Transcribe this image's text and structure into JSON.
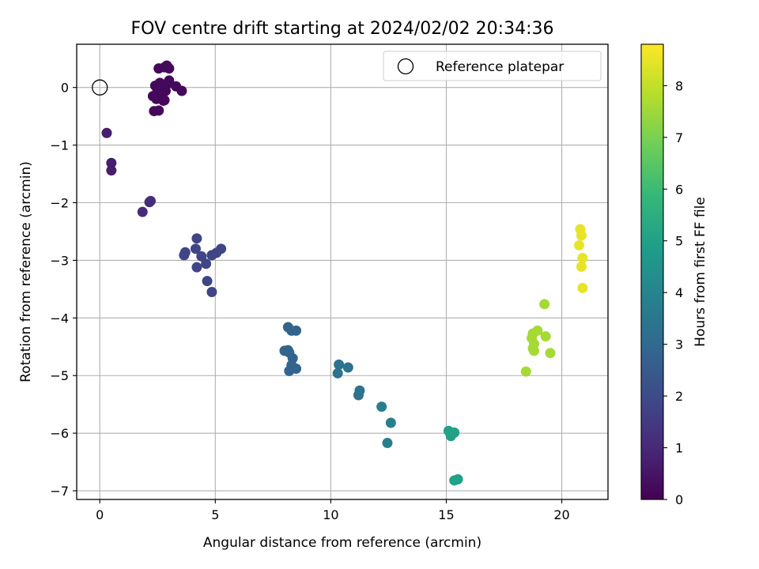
{
  "chart_data": {
    "type": "scatter",
    "title": "FOV centre drift starting at 2024/02/02 20:34:36",
    "xlabel": "Angular distance from reference (arcmin)",
    "ylabel": "Rotation from reference (arcmin)",
    "xlim": [
      -1,
      22
    ],
    "ylim": [
      -7.15,
      0.75
    ],
    "xticks": [
      0,
      5,
      10,
      15,
      20
    ],
    "yticks": [
      0,
      -1,
      -2,
      -3,
      -4,
      -5,
      -6,
      -7
    ],
    "grid": true,
    "legend": {
      "position": "top-right",
      "entries": [
        "Reference platepar"
      ]
    },
    "reference_point": {
      "x": 0,
      "y": 0,
      "label": "Reference platepar"
    },
    "colorbar": {
      "label": "Hours from first FF file",
      "range": [
        0,
        8.8
      ],
      "ticks": [
        0,
        1,
        2,
        3,
        4,
        5,
        6,
        7,
        8
      ],
      "colormap": [
        "#440154",
        "#482878",
        "#3e4a89",
        "#31688e",
        "#26828e",
        "#1f9e89",
        "#35b779",
        "#6ece58",
        "#b5de2b",
        "#fde725"
      ]
    },
    "points": [
      {
        "x": 2.8,
        "y": 0.35,
        "t": 0.2
      },
      {
        "x": 3.0,
        "y": 0.33,
        "t": 0.2
      },
      {
        "x": 2.55,
        "y": 0.33,
        "t": 0.2
      },
      {
        "x": 2.9,
        "y": 0.38,
        "t": 0.2
      },
      {
        "x": 2.4,
        "y": 0.03,
        "t": 0.2
      },
      {
        "x": 2.6,
        "y": 0.08,
        "t": 0.2
      },
      {
        "x": 2.9,
        "y": 0.05,
        "t": 0.2
      },
      {
        "x": 3.0,
        "y": 0.12,
        "t": 0.2
      },
      {
        "x": 2.5,
        "y": -0.05,
        "t": 0.2
      },
      {
        "x": 2.7,
        "y": 0.0,
        "t": 0.2
      },
      {
        "x": 3.3,
        "y": 0.02,
        "t": 0.2
      },
      {
        "x": 3.55,
        "y": -0.06,
        "t": 0.2
      },
      {
        "x": 2.3,
        "y": -0.15,
        "t": 0.2
      },
      {
        "x": 2.45,
        "y": -0.2,
        "t": 0.2
      },
      {
        "x": 2.8,
        "y": -0.22,
        "t": 0.2
      },
      {
        "x": 2.85,
        "y": -0.06,
        "t": 0.2
      },
      {
        "x": 2.65,
        "y": -0.12,
        "t": 0.2
      },
      {
        "x": 2.35,
        "y": -0.41,
        "t": 0.2
      },
      {
        "x": 2.55,
        "y": -0.4,
        "t": 0.2
      },
      {
        "x": 2.75,
        "y": -0.23,
        "t": 0.2
      },
      {
        "x": 0.3,
        "y": -0.79,
        "t": 0.7
      },
      {
        "x": 0.5,
        "y": -1.31,
        "t": 0.7
      },
      {
        "x": 0.5,
        "y": -1.44,
        "t": 0.7
      },
      {
        "x": 2.2,
        "y": -1.97,
        "t": 1.1
      },
      {
        "x": 2.15,
        "y": -1.99,
        "t": 1.1
      },
      {
        "x": 1.85,
        "y": -2.16,
        "t": 1.1
      },
      {
        "x": 4.2,
        "y": -2.62,
        "t": 1.8
      },
      {
        "x": 4.15,
        "y": -2.8,
        "t": 1.8
      },
      {
        "x": 3.7,
        "y": -2.86,
        "t": 1.8
      },
      {
        "x": 3.65,
        "y": -2.91,
        "t": 1.8
      },
      {
        "x": 4.4,
        "y": -2.93,
        "t": 1.8
      },
      {
        "x": 4.85,
        "y": -2.91,
        "t": 1.8
      },
      {
        "x": 5.05,
        "y": -2.87,
        "t": 1.8
      },
      {
        "x": 5.25,
        "y": -2.8,
        "t": 1.8
      },
      {
        "x": 4.6,
        "y": -3.06,
        "t": 1.8
      },
      {
        "x": 4.2,
        "y": -3.12,
        "t": 1.8
      },
      {
        "x": 4.65,
        "y": -3.36,
        "t": 1.8
      },
      {
        "x": 4.85,
        "y": -3.55,
        "t": 1.8
      },
      {
        "x": 8.15,
        "y": -4.16,
        "t": 2.8
      },
      {
        "x": 8.3,
        "y": -4.22,
        "t": 2.8
      },
      {
        "x": 8.5,
        "y": -4.22,
        "t": 2.8
      },
      {
        "x": 8.0,
        "y": -4.57,
        "t": 2.8
      },
      {
        "x": 8.15,
        "y": -4.56,
        "t": 2.8
      },
      {
        "x": 8.2,
        "y": -4.6,
        "t": 2.8
      },
      {
        "x": 8.35,
        "y": -4.7,
        "t": 2.8
      },
      {
        "x": 8.3,
        "y": -4.82,
        "t": 2.8
      },
      {
        "x": 8.5,
        "y": -4.88,
        "t": 2.8
      },
      {
        "x": 8.2,
        "y": -4.92,
        "t": 2.8
      },
      {
        "x": 10.35,
        "y": -4.81,
        "t": 3.3
      },
      {
        "x": 10.75,
        "y": -4.86,
        "t": 3.3
      },
      {
        "x": 10.3,
        "y": -4.96,
        "t": 3.3
      },
      {
        "x": 11.25,
        "y": -5.26,
        "t": 3.3
      },
      {
        "x": 11.2,
        "y": -5.34,
        "t": 3.3
      },
      {
        "x": 12.2,
        "y": -5.54,
        "t": 3.8
      },
      {
        "x": 12.6,
        "y": -5.82,
        "t": 3.8
      },
      {
        "x": 12.45,
        "y": -6.17,
        "t": 3.8
      },
      {
        "x": 15.1,
        "y": -5.96,
        "t": 5.0
      },
      {
        "x": 15.35,
        "y": -5.99,
        "t": 5.0
      },
      {
        "x": 15.2,
        "y": -6.05,
        "t": 5.0
      },
      {
        "x": 15.5,
        "y": -6.8,
        "t": 5.0
      },
      {
        "x": 15.35,
        "y": -6.82,
        "t": 5.0
      },
      {
        "x": 19.25,
        "y": -3.76,
        "t": 7.6
      },
      {
        "x": 18.75,
        "y": -4.27,
        "t": 7.6
      },
      {
        "x": 18.95,
        "y": -4.22,
        "t": 7.6
      },
      {
        "x": 18.7,
        "y": -4.35,
        "t": 7.6
      },
      {
        "x": 18.8,
        "y": -4.45,
        "t": 7.6
      },
      {
        "x": 19.3,
        "y": -4.32,
        "t": 7.6
      },
      {
        "x": 18.75,
        "y": -4.53,
        "t": 7.6
      },
      {
        "x": 18.8,
        "y": -4.57,
        "t": 7.6
      },
      {
        "x": 19.5,
        "y": -4.61,
        "t": 7.6
      },
      {
        "x": 18.45,
        "y": -4.93,
        "t": 7.6
      },
      {
        "x": 20.8,
        "y": -2.46,
        "t": 8.5
      },
      {
        "x": 20.85,
        "y": -2.57,
        "t": 8.5
      },
      {
        "x": 20.75,
        "y": -2.74,
        "t": 8.5
      },
      {
        "x": 20.9,
        "y": -2.96,
        "t": 8.5
      },
      {
        "x": 20.85,
        "y": -3.11,
        "t": 8.5
      },
      {
        "x": 20.9,
        "y": -3.48,
        "t": 8.5
      }
    ]
  }
}
